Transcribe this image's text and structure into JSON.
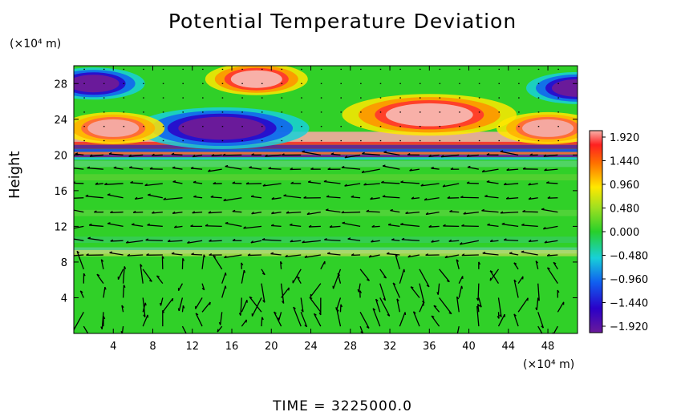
{
  "chart_data": {
    "type": "heatmap",
    "title": "Potential Temperature Deviation",
    "ylabel": "Height",
    "y_unit": "(×10⁴ m)",
    "x_unit": "(×10⁴ m)",
    "footer": "TIME = 3225000.0",
    "x_ticks": [
      4,
      8,
      12,
      16,
      20,
      24,
      28,
      32,
      36,
      40,
      44,
      48
    ],
    "y_ticks": [
      4,
      8,
      12,
      16,
      20,
      24,
      28
    ],
    "xlim": [
      0,
      51
    ],
    "ylim": [
      0,
      30
    ],
    "colorbar": {
      "ticks": [
        "1.920",
        "1.440",
        "0.960",
        "0.480",
        "0.000",
        "−0.480",
        "−0.960",
        "−1.440",
        "−1.920"
      ],
      "range": [
        -1.92,
        1.92
      ]
    },
    "features": [
      {
        "type": "anomaly",
        "x": 2,
        "y": 28,
        "value": -1.92
      },
      {
        "type": "anomaly",
        "x": 18.5,
        "y": 28.5,
        "value": 1.8
      },
      {
        "type": "anomaly",
        "x": 51,
        "y": 27.5,
        "value": -1.9
      },
      {
        "type": "anomaly",
        "x": 15,
        "y": 23,
        "value": -1.92
      },
      {
        "type": "anomaly",
        "x": 36,
        "y": 24.5,
        "value": 1.7
      },
      {
        "type": "anomaly",
        "x": 4,
        "y": 23,
        "value": 1.4
      },
      {
        "type": "anomaly",
        "x": 48,
        "y": 23,
        "value": 1.4
      }
    ]
  }
}
